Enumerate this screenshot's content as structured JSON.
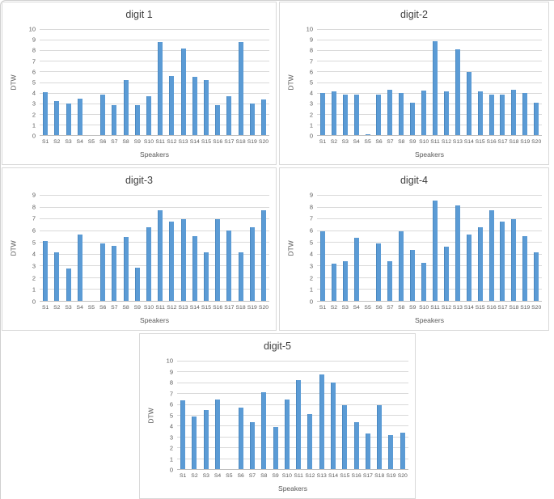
{
  "figure": {
    "background": "#ffffff",
    "panel_border": "#d9d9d9"
  },
  "colors": {
    "bar": "#5B9BD5",
    "gridline": "#D9D9D9",
    "axis_line": "#BFBFBF",
    "text": "#595959"
  },
  "chart_data": [
    {
      "type": "bar",
      "title": "digit 1",
      "xlabel": "Speakers",
      "ylabel": "DTW",
      "ylim": [
        0,
        10
      ],
      "ytick_step": 1,
      "grid": true,
      "legend_position": "none",
      "categories": [
        "S1",
        "S2",
        "S3",
        "S4",
        "S5",
        "S6",
        "S7",
        "S8",
        "S9",
        "S10",
        "S11",
        "S12",
        "S13",
        "S14",
        "S15",
        "S16",
        "S17",
        "S18",
        "S19",
        "S20"
      ],
      "values": [
        4.05,
        3.2,
        3.0,
        3.4,
        0,
        3.8,
        2.85,
        5.2,
        2.8,
        3.7,
        8.75,
        5.6,
        8.15,
        5.5,
        5.2,
        2.8,
        3.7,
        8.75,
        3.0,
        3.35
      ]
    },
    {
      "type": "bar",
      "title": "digit-2",
      "xlabel": "Speakers",
      "ylabel": "DTW",
      "ylim": [
        0,
        10
      ],
      "ytick_step": 1,
      "grid": true,
      "legend_position": "none",
      "categories": [
        "S1",
        "S2",
        "S3",
        "S4",
        "S5",
        "S6",
        "S7",
        "S8",
        "S9",
        "S10",
        "S11",
        "S12",
        "S13",
        "S14",
        "S15",
        "S16",
        "S17",
        "S18",
        "S19",
        "S20"
      ],
      "values": [
        3.95,
        4.1,
        3.85,
        3.8,
        0.1,
        3.8,
        4.25,
        3.95,
        3.05,
        4.2,
        8.85,
        4.15,
        8.1,
        5.95,
        4.1,
        3.85,
        3.8,
        4.25,
        3.95,
        3.05
      ]
    },
    {
      "type": "bar",
      "title": "digit-3",
      "xlabel": "Speakers",
      "ylabel": "DTW",
      "ylim": [
        0,
        9
      ],
      "ytick_step": 1,
      "grid": true,
      "legend_position": "none",
      "categories": [
        "S1",
        "S2",
        "S3",
        "S4",
        "S5",
        "S6",
        "S7",
        "S8",
        "S9",
        "S10",
        "S11",
        "S12",
        "S13",
        "S14",
        "S15",
        "S16",
        "S17",
        "S18",
        "S19",
        "S20"
      ],
      "values": [
        5.1,
        4.15,
        2.75,
        5.65,
        0,
        4.85,
        4.65,
        5.45,
        2.85,
        6.25,
        7.7,
        6.75,
        6.95,
        5.5,
        4.15,
        6.95,
        5.95,
        4.1,
        6.25,
        7.7
      ]
    },
    {
      "type": "bar",
      "title": "digit-4",
      "xlabel": "Speakers",
      "ylabel": "DTW",
      "ylim": [
        0,
        9
      ],
      "ytick_step": 1,
      "grid": true,
      "legend_position": "none",
      "categories": [
        "S1",
        "S2",
        "S3",
        "S4",
        "S5",
        "S6",
        "S7",
        "S8",
        "S9",
        "S10",
        "S11",
        "S12",
        "S13",
        "S14",
        "S15",
        "S16",
        "S17",
        "S18",
        "S19",
        "S20"
      ],
      "values": [
        5.9,
        3.15,
        3.35,
        5.35,
        0,
        4.85,
        3.35,
        5.9,
        4.3,
        3.25,
        8.55,
        4.6,
        8.1,
        5.65,
        6.25,
        7.7,
        6.75,
        6.95,
        5.5,
        4.15
      ]
    },
    {
      "type": "bar",
      "title": "digit-5",
      "xlabel": "Speakers",
      "ylabel": "DTW",
      "ylim": [
        0,
        10
      ],
      "ytick_step": 1,
      "grid": true,
      "legend_position": "none",
      "categories": [
        "S1",
        "S2",
        "S3",
        "S4",
        "S5",
        "S6",
        "S7",
        "S8",
        "S9",
        "S10",
        "S11",
        "S12",
        "S13",
        "S14",
        "S15",
        "S16",
        "S17",
        "S18",
        "S19",
        "S20"
      ],
      "values": [
        6.35,
        4.85,
        5.45,
        6.45,
        0,
        5.65,
        4.3,
        7.1,
        3.9,
        6.45,
        8.2,
        5.1,
        8.75,
        7.95,
        5.9,
        4.3,
        3.25,
        5.9,
        3.15,
        3.35
      ]
    }
  ]
}
